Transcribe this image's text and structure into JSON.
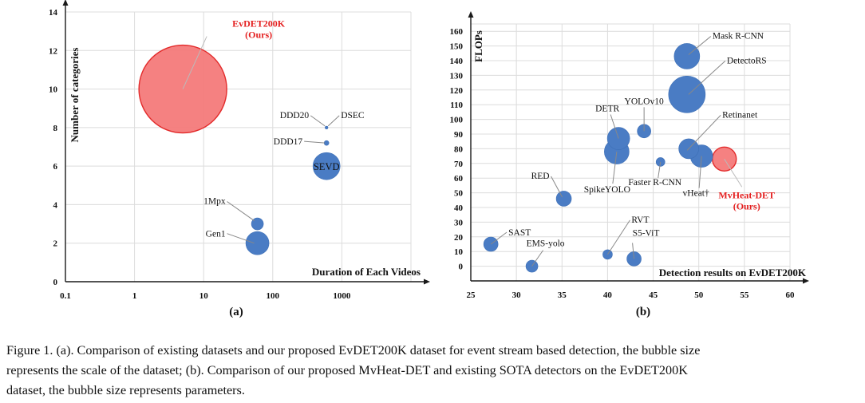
{
  "chart_data": [
    {
      "type": "scatter",
      "variant": "bubble",
      "panel_label": "(a)",
      "xlabel": "Duration of Each Videos",
      "ylabel": "Number of categories",
      "x_scale": "log",
      "xlim": [
        0.1,
        10000
      ],
      "ylim": [
        0,
        14
      ],
      "x_ticks": [
        "0.1",
        "1",
        "10",
        "100",
        "1000"
      ],
      "y_ticks": [
        "0",
        "2",
        "4",
        "6",
        "8",
        "10",
        "12",
        "14"
      ],
      "grid": true,
      "points": [
        {
          "label": "EvDET200K",
          "sublabel": "(Ours)",
          "x": 5,
          "y": 10,
          "size": 55,
          "highlight": true
        },
        {
          "label": "DSEC",
          "x": 600,
          "y": 8,
          "size": 1.7,
          "highlight": false
        },
        {
          "label": "DDD20",
          "x": 600,
          "y": 8,
          "size": 1.7,
          "highlight": false
        },
        {
          "label": "DDD17",
          "x": 600,
          "y": 7.2,
          "size": 3,
          "highlight": false
        },
        {
          "label": "SEVD",
          "x": 600,
          "y": 6,
          "size": 17,
          "highlight": false
        },
        {
          "label": "1Mpx",
          "x": 60,
          "y": 3,
          "size": 7.5,
          "highlight": false
        },
        {
          "label": "Gen1",
          "x": 60,
          "y": 2,
          "size": 14.5,
          "highlight": false
        }
      ]
    },
    {
      "type": "scatter",
      "variant": "bubble",
      "panel_label": "(b)",
      "xlabel": "Detection results on EvDET200K",
      "ylabel": "FLOPs",
      "xlim": [
        25,
        60
      ],
      "ylim": [
        -10,
        165
      ],
      "x_ticks": [
        "25",
        "30",
        "35",
        "40",
        "45",
        "50",
        "55",
        "60"
      ],
      "y_ticks": [
        "0",
        "10",
        "20",
        "30",
        "40",
        "50",
        "60",
        "70",
        "80",
        "90",
        "100",
        "110",
        "120",
        "130",
        "140",
        "150",
        "160"
      ],
      "grid": true,
      "points": [
        {
          "label": "Mask R-CNN",
          "x": 48.7,
          "y": 143,
          "size": 16,
          "highlight": false
        },
        {
          "label": "DetectoRS",
          "x": 48.7,
          "y": 117,
          "size": 23,
          "highlight": false
        },
        {
          "label": "YOLOv10",
          "x": 44,
          "y": 92,
          "size": 8.5,
          "highlight": false
        },
        {
          "label": "DETR",
          "x": 41.2,
          "y": 87,
          "size": 14,
          "highlight": false
        },
        {
          "label": "SpikeYOLO",
          "x": 41,
          "y": 78,
          "size": 15.5,
          "highlight": false
        },
        {
          "label": "Retinanet",
          "x": 48.9,
          "y": 80,
          "size": 12.5,
          "highlight": false
        },
        {
          "label": "vHeat†",
          "x": 50.3,
          "y": 75,
          "size": 14,
          "highlight": false
        },
        {
          "label": "Faster R-CNN",
          "x": 45.8,
          "y": 71,
          "size": 5.5,
          "highlight": false
        },
        {
          "label": "MvHeat-DET",
          "sublabel": "(Ours)",
          "x": 52.8,
          "y": 73,
          "size": 15,
          "highlight": true
        },
        {
          "label": "RED",
          "x": 35.2,
          "y": 46,
          "size": 9.5,
          "highlight": false
        },
        {
          "label": "SAST",
          "x": 27.2,
          "y": 15,
          "size": 9,
          "highlight": false
        },
        {
          "label": "EMS-yolo",
          "x": 31.7,
          "y": 0,
          "size": 7.5,
          "highlight": false
        },
        {
          "label": "RVT",
          "x": 40,
          "y": 8,
          "size": 6,
          "highlight": false
        },
        {
          "label": "S5-ViT",
          "x": 42.9,
          "y": 5,
          "size": 9,
          "highlight": false
        }
      ]
    }
  ],
  "caption": {
    "line1": "Figure 1.  (a).  Comparison of existing datasets and our proposed EvDET200K dataset for event stream based detection, the bubble size",
    "line2": "represents the scale of the dataset; (b).  Comparison of our proposed MvHeat-DET and existing SOTA detectors on the EvDET200K",
    "line3": "dataset, the bubble size represents parameters."
  },
  "colors": {
    "bubble": "#4a7cc4",
    "highlight_fill": "#f47a7a",
    "highlight_stroke": "#e32b2b",
    "highlight_text": "#e41f1f",
    "grid": "#dcdcdc",
    "axis": "#1a1a1a",
    "leader": "#888888"
  }
}
